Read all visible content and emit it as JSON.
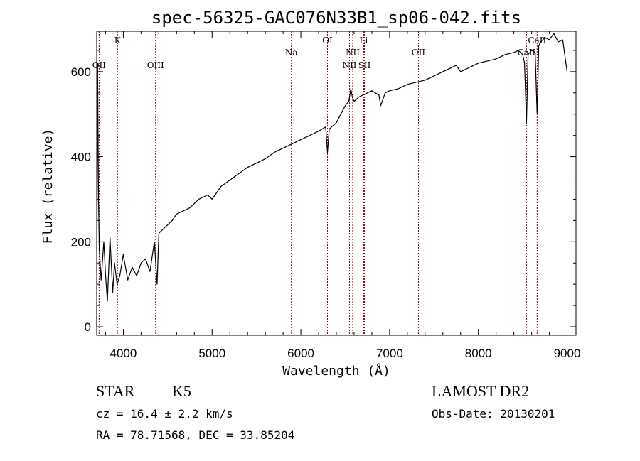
{
  "chart_data": {
    "type": "line",
    "title": "spec-56325-GAC076N33B1_sp06-042.fits",
    "xlabel": "Wavelength (Å)",
    "ylabel": "Flux (relative)",
    "xlim": [
      3700,
      9100
    ],
    "ylim": [
      -20,
      695
    ],
    "xticks": [
      4000,
      5000,
      6000,
      7000,
      8000,
      9000
    ],
    "yticks": [
      0,
      200,
      400,
      600
    ],
    "series": [
      {
        "color": "#000000",
        "x": [
          3700,
          3710,
          3720,
          3730,
          3750,
          3780,
          3800,
          3820,
          3850,
          3880,
          3900,
          3930,
          3960,
          4000,
          4050,
          4100,
          4150,
          4200,
          4250,
          4300,
          4350,
          4380,
          4400,
          4450,
          4500,
          4550,
          4600,
          4650,
          4700,
          4750,
          4800,
          4850,
          4900,
          4950,
          5000,
          5100,
          5200,
          5300,
          5400,
          5500,
          5600,
          5700,
          5800,
          5900,
          6000,
          6100,
          6200,
          6280,
          6300,
          6320,
          6400,
          6450,
          6500,
          6540,
          6563,
          6580,
          6600,
          6650,
          6700,
          6750,
          6800,
          6880,
          6900,
          6950,
          7000,
          7100,
          7200,
          7300,
          7400,
          7500,
          7600,
          7700,
          7750,
          7800,
          7900,
          8000,
          8100,
          8200,
          8300,
          8400,
          8450,
          8500,
          8520,
          8542,
          8560,
          8600,
          8640,
          8662,
          8680,
          8700,
          8750,
          8800,
          8850,
          8900,
          8950,
          9000
        ],
        "y": [
          0,
          620,
          300,
          180,
          110,
          200,
          120,
          60,
          210,
          80,
          150,
          100,
          120,
          170,
          110,
          140,
          120,
          150,
          160,
          130,
          200,
          100,
          220,
          230,
          240,
          250,
          265,
          270,
          275,
          280,
          290,
          300,
          305,
          310,
          300,
          330,
          345,
          360,
          375,
          385,
          395,
          410,
          420,
          430,
          440,
          450,
          460,
          470,
          410,
          465,
          480,
          500,
          520,
          530,
          560,
          540,
          530,
          540,
          545,
          550,
          555,
          545,
          520,
          550,
          555,
          560,
          570,
          575,
          580,
          590,
          600,
          610,
          615,
          600,
          610,
          620,
          625,
          630,
          640,
          645,
          650,
          640,
          620,
          480,
          640,
          650,
          645,
          500,
          660,
          670,
          680,
          675,
          690,
          670,
          675,
          600
        ]
      }
    ],
    "line_markers": [
      {
        "label": "OII",
        "x": 3727,
        "row": 3
      },
      {
        "label": "K",
        "x": 3934,
        "row": 1
      },
      {
        "label": "OIII",
        "x": 4363,
        "row": 3
      },
      {
        "label": "Na",
        "x": 5893,
        "row": 2
      },
      {
        "label": "OI",
        "x": 6300,
        "row": 1
      },
      {
        "label": "NII",
        "x": 6548,
        "row": 3
      },
      {
        "label": "NII",
        "x": 6584,
        "row": 2
      },
      {
        "label": "Li",
        "x": 6708,
        "row": 1
      },
      {
        "label": "SII",
        "x": 6717,
        "row": 3
      },
      {
        "label": "OII",
        "x": 7325,
        "row": 2
      },
      {
        "label": "CaII",
        "x": 8542,
        "row": 2
      },
      {
        "label": "CaII",
        "x": 8662,
        "row": 1
      }
    ],
    "marker_color": "#8b0000"
  },
  "info": {
    "class_label": "STAR",
    "subclass": "K5",
    "survey": "LAMOST DR2",
    "cz": "cz = 16.4 ± 2.2 km/s",
    "obs_date": "Obs-Date: 20130201",
    "radec": "RA =  78.71568, DEC =  33.85204"
  }
}
